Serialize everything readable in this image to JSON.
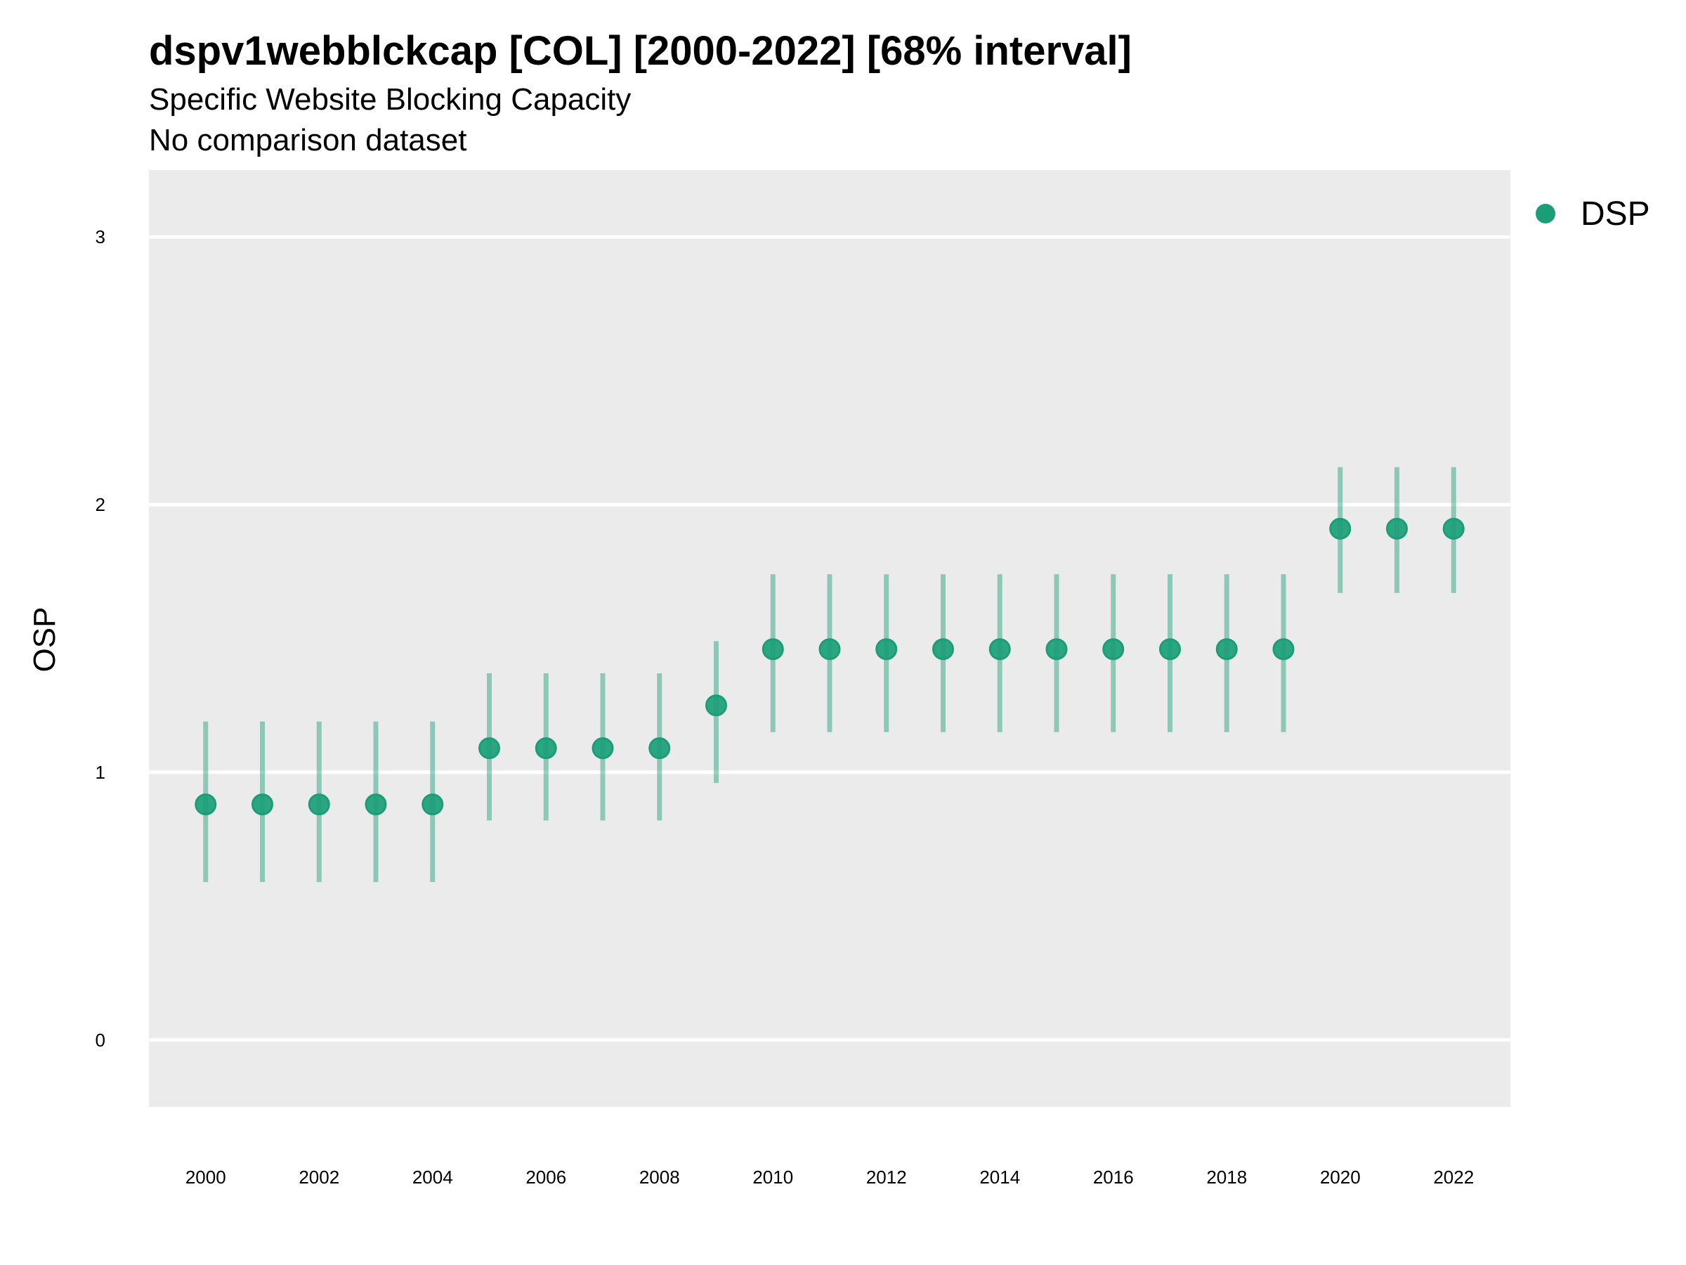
{
  "chart_data": {
    "type": "scatter",
    "title": "dspv1webblckcap [COL] [2000-2022] [68% interval]",
    "subtitle": "Specific Website Blocking Capacity",
    "caption_line": "No comparison dataset",
    "xlabel": "",
    "ylabel": "OSP",
    "xlim": [
      1999,
      2023
    ],
    "ylim": [
      -0.25,
      3.25
    ],
    "x_ticks": [
      2000,
      2002,
      2004,
      2006,
      2008,
      2010,
      2012,
      2014,
      2016,
      2018,
      2020,
      2022
    ],
    "y_ticks": [
      0,
      1,
      2,
      3
    ],
    "grid": true,
    "legend": {
      "position": "right",
      "entries": [
        "DSP"
      ]
    },
    "series": [
      {
        "name": "DSP",
        "color": "#1b9e77",
        "x": [
          2000,
          2001,
          2002,
          2003,
          2004,
          2005,
          2006,
          2007,
          2008,
          2009,
          2010,
          2011,
          2012,
          2013,
          2014,
          2015,
          2016,
          2017,
          2018,
          2019,
          2020,
          2021,
          2022
        ],
        "values": [
          0.88,
          0.88,
          0.88,
          0.88,
          0.88,
          1.09,
          1.09,
          1.09,
          1.09,
          1.25,
          1.46,
          1.46,
          1.46,
          1.46,
          1.46,
          1.46,
          1.46,
          1.46,
          1.46,
          1.46,
          1.91,
          1.91,
          1.91
        ],
        "lower": [
          0.59,
          0.59,
          0.59,
          0.59,
          0.59,
          0.82,
          0.82,
          0.82,
          0.82,
          0.96,
          1.15,
          1.15,
          1.15,
          1.15,
          1.15,
          1.15,
          1.15,
          1.15,
          1.15,
          1.15,
          1.67,
          1.67,
          1.67
        ],
        "upper": [
          1.19,
          1.19,
          1.19,
          1.19,
          1.19,
          1.37,
          1.37,
          1.37,
          1.37,
          1.49,
          1.74,
          1.74,
          1.74,
          1.74,
          1.74,
          1.74,
          1.74,
          1.74,
          1.74,
          1.74,
          2.14,
          2.14,
          2.14
        ]
      }
    ]
  },
  "colors": {
    "panel_background": "#ebebeb",
    "gridline": "#ffffff",
    "point": "#1b9e77"
  }
}
